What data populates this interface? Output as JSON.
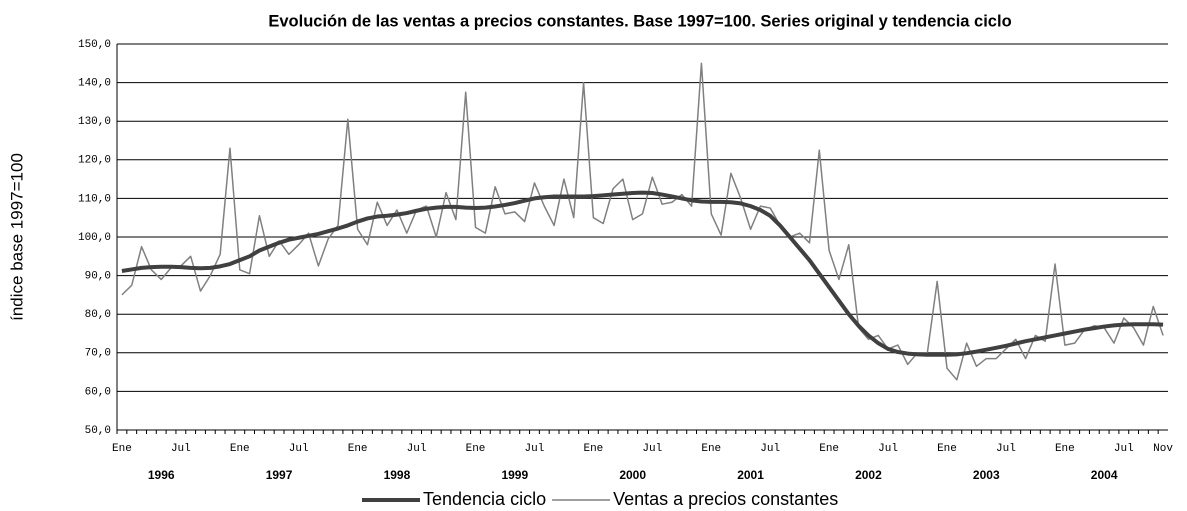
{
  "chart_data": {
    "type": "line",
    "title": "Evolución de las ventas a precios constantes. Base 1997=100. Series original y tendencia ciclo",
    "y_label": "índice base 1997=100",
    "categories": [
      "Ene",
      null,
      null,
      null,
      null,
      null,
      "Jul",
      null,
      null,
      null,
      null,
      null,
      "Ene",
      null,
      null,
      null,
      null,
      null,
      "Jul",
      null,
      null,
      null,
      null,
      null,
      "Ene",
      null,
      null,
      null,
      null,
      null,
      "Jul",
      null,
      null,
      null,
      null,
      null,
      "Ene",
      null,
      null,
      null,
      null,
      null,
      "Jul",
      null,
      null,
      null,
      null,
      null,
      "Ene",
      null,
      null,
      null,
      null,
      null,
      "Jul",
      null,
      null,
      null,
      null,
      null,
      "Ene",
      null,
      null,
      null,
      null,
      null,
      "Jul",
      null,
      null,
      null,
      null,
      null,
      "Ene",
      null,
      null,
      null,
      null,
      null,
      "Jul",
      null,
      null,
      null,
      null,
      null,
      "Ene",
      null,
      null,
      null,
      null,
      null,
      "Jul",
      null,
      null,
      null,
      null,
      null,
      "Ene",
      null,
      null,
      null,
      null,
      null,
      "Jul",
      null,
      null,
      null,
      "Nov"
    ],
    "years": [
      "1996",
      "1997",
      "1998",
      "1999",
      "2000",
      "2001",
      "2002",
      "2003",
      "2004"
    ],
    "series": [
      {
        "name": "Tendencia ciclo",
        "color": "#404040",
        "width": 4,
        "values": [
          91.2,
          91.6,
          92,
          92.2,
          92.3,
          92.3,
          92.2,
          92,
          91.9,
          92,
          92.4,
          93,
          94,
          95,
          96.5,
          97.5,
          98.5,
          99.3,
          99.8,
          100.3,
          100.8,
          101.5,
          102.2,
          103,
          104,
          104.8,
          105.3,
          105.5,
          105.8,
          106.2,
          106.8,
          107.3,
          107.6,
          107.8,
          107.8,
          107.6,
          107.5,
          107.6,
          107.9,
          108.3,
          108.8,
          109.4,
          110,
          110.3,
          110.5,
          110.5,
          110.5,
          110.5,
          110.6,
          110.8,
          111,
          111.2,
          111.4,
          111.5,
          111.4,
          111,
          110.5,
          110,
          109.5,
          109.2,
          109.1,
          109.1,
          109,
          108.7,
          108,
          107,
          105.5,
          103,
          100,
          97,
          94,
          90.5,
          87,
          83.5,
          80,
          77,
          74.5,
          72.5,
          71,
          70.2,
          69.8,
          69.6,
          69.5,
          69.5,
          69.5,
          69.6,
          69.9,
          70.3,
          70.8,
          71.3,
          71.8,
          72.4,
          73,
          73.5,
          74,
          74.5,
          75,
          75.5,
          76,
          76.4,
          76.8,
          77.1,
          77.3,
          77.4,
          77.4,
          77.4,
          77.3
        ]
      },
      {
        "name": "Ventas a precios constantes",
        "color": "#808080",
        "width": 1.5,
        "values": [
          85,
          87.5,
          97.5,
          91.5,
          89,
          92,
          92.5,
          95,
          86,
          90,
          95.5,
          123,
          91.5,
          90.5,
          105.5,
          95,
          99,
          95.5,
          98,
          101,
          92.5,
          99.5,
          103,
          130.5,
          102,
          98,
          109,
          103,
          107,
          101,
          107,
          108,
          100,
          111.5,
          104.5,
          137.5,
          102.5,
          101,
          113,
          106,
          106.5,
          104,
          114,
          108,
          103,
          115,
          105,
          140,
          105,
          103.5,
          112.5,
          115,
          104.5,
          106,
          115.5,
          108.5,
          109,
          111,
          108,
          145,
          106,
          100.5,
          116.5,
          110,
          102,
          108,
          107.5,
          103,
          100,
          101,
          98.5,
          122.5,
          96.5,
          89,
          98,
          76.5,
          73.5,
          74.5,
          71,
          72,
          67,
          70,
          70,
          88.5,
          66,
          63,
          72.5,
          66.5,
          68.5,
          68.5,
          71,
          73.5,
          68.5,
          74.5,
          73,
          93,
          72,
          72.5,
          76,
          77,
          76.5,
          72.5,
          79,
          76.5,
          72,
          82,
          74.5
        ]
      }
    ],
    "ylim": [
      50,
      150
    ],
    "yticks": [
      {
        "value": 50,
        "label": "50,0"
      },
      {
        "value": 60,
        "label": "60,0"
      },
      {
        "value": 70,
        "label": "70,0"
      },
      {
        "value": 80,
        "label": "80,0"
      },
      {
        "value": 90,
        "label": "90,0"
      },
      {
        "value": 100,
        "label": "100,0"
      },
      {
        "value": 110,
        "label": "110,0"
      },
      {
        "value": 120,
        "label": "120,0"
      },
      {
        "value": 130,
        "label": "130,0"
      },
      {
        "value": 140,
        "label": "140,0"
      },
      {
        "value": 150,
        "label": "150,0"
      }
    ],
    "grid": true
  }
}
